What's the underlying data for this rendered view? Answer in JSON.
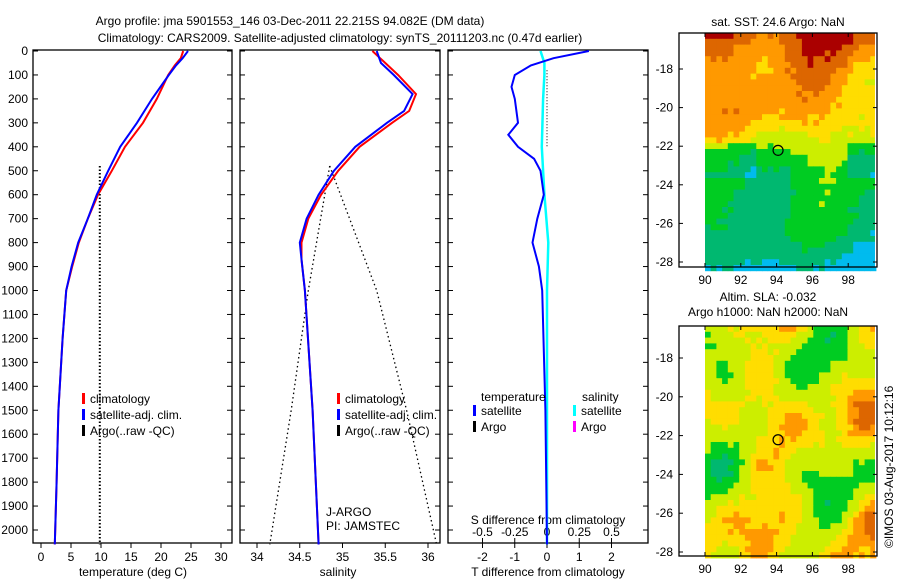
{
  "title": {
    "line1": "Argo profile: jma 5901553_146 03-Dec-2011 22.215S 94.082E (DM data)",
    "line2": "Climatology: CARS2009. Satellite-adjusted climatology: synTS_20111203.nc (0.47d earlier)"
  },
  "credit": "©IMOS 03-Aug-2017 10:12:16",
  "colors": {
    "climatology": "#ff0000",
    "satellite": "#0000ff",
    "argo": "#000000",
    "sal_satellite": "#00ffff",
    "sal_argo": "#ff00ff"
  },
  "chart_data": [
    {
      "type": "line",
      "id": "temperature",
      "xlabel": "temperature (deg C)",
      "xlim": [
        -2,
        31.5
      ],
      "ylim": [
        2060,
        0
      ],
      "xticks": [
        "0",
        "5",
        "10",
        "15",
        "20",
        "25",
        "30"
      ],
      "yticks": [
        "0",
        "100",
        "200",
        "300",
        "400",
        "500",
        "600",
        "700",
        "800",
        "900",
        "1000",
        "1100",
        "1200",
        "1300",
        "1400",
        "1500",
        "1600",
        "1700",
        "1800",
        "1900",
        "2000"
      ],
      "legend": [
        "climatology",
        "satellite-adj. clim.",
        "Argo(..raw -QC)"
      ],
      "series": [
        {
          "name": "climatology",
          "depth": [
            0,
            30,
            60,
            100,
            200,
            300,
            400,
            500,
            600,
            700,
            800,
            900,
            1000,
            1200,
            1500,
            1800,
            2060
          ],
          "values": [
            23.7,
            23.3,
            22.3,
            21.2,
            19.3,
            17,
            14,
            11.8,
            9.5,
            7.8,
            6.3,
            5.2,
            4.2,
            3.6,
            2.9,
            2.6,
            2.3
          ]
        },
        {
          "name": "satellite-adj. clim.",
          "depth": [
            0,
            30,
            60,
            100,
            200,
            300,
            400,
            500,
            600,
            700,
            800,
            900,
            1000,
            1200,
            1500,
            1800,
            2060
          ],
          "values": [
            24.5,
            23.6,
            22.5,
            21.3,
            18.5,
            16,
            13.2,
            11.2,
            9.3,
            7.8,
            6.2,
            5.1,
            4.2,
            3.6,
            2.9,
            2.6,
            2.3
          ]
        },
        {
          "name": "Argo(..raw -QC)",
          "depth": [
            480,
            2060
          ],
          "values": [
            9.8,
            9.8
          ]
        }
      ]
    },
    {
      "type": "line",
      "id": "salinity",
      "xlabel": "salinity",
      "xlim": [
        33.8,
        36.15
      ],
      "ylim": [
        2060,
        0
      ],
      "xticks": [
        "34",
        "34.5",
        "35",
        "35.5",
        "36"
      ],
      "legend": [
        "climatology",
        "satellite-adj. clim.",
        "Argo(..raw -QC)"
      ],
      "annotation": [
        "J-ARGO",
        "PI: JAMSTEC"
      ],
      "series": [
        {
          "name": "climatology",
          "depth": [
            0,
            50,
            100,
            180,
            250,
            300,
            400,
            500,
            600,
            700,
            800,
            870,
            1000,
            1500,
            2060
          ],
          "values": [
            35.35,
            35.5,
            35.65,
            35.86,
            35.78,
            35.58,
            35.2,
            34.95,
            34.75,
            34.6,
            34.52,
            34.52,
            34.56,
            34.65,
            34.72
          ]
        },
        {
          "name": "satellite-adj. clim.",
          "depth": [
            0,
            50,
            100,
            180,
            250,
            300,
            400,
            500,
            600,
            700,
            800,
            870,
            1000,
            1500,
            2060
          ],
          "values": [
            35.4,
            35.45,
            35.6,
            35.82,
            35.72,
            35.52,
            35.15,
            34.9,
            34.72,
            34.58,
            34.5,
            34.52,
            34.56,
            34.65,
            34.72
          ]
        },
        {
          "name": "envelope-left",
          "depth": [
            480,
            1000,
            1500,
            2060
          ],
          "values": [
            34.85,
            34.6,
            34.4,
            34.15
          ]
        },
        {
          "name": "envelope-right",
          "depth": [
            480,
            1000,
            1500,
            2060
          ],
          "values": [
            34.85,
            35.4,
            35.75,
            36.1
          ]
        }
      ]
    },
    {
      "type": "line",
      "id": "difference",
      "xlabel": "T difference from climatology",
      "xlabel_top": "S difference from climatology",
      "xlim": [
        -2.9,
        2.9
      ],
      "ylim": [
        2060,
        0
      ],
      "xticks": [
        "-2",
        "-1",
        "0",
        "1",
        "2"
      ],
      "xticks_top": [
        "-0.5",
        "-0.25",
        "0",
        "0.25",
        "0.5"
      ],
      "legend_temperature": {
        "title": "temperature",
        "items": [
          "satellite",
          "Argo"
        ]
      },
      "legend_salinity": {
        "title": "salinity",
        "items": [
          "satellite",
          "Argo"
        ]
      },
      "series": [
        {
          "name": "T satellite",
          "depth": [
            0,
            30,
            60,
            100,
            150,
            200,
            300,
            350,
            400,
            450,
            500,
            600,
            700,
            800,
            900,
            1000,
            1500,
            2060
          ],
          "values": [
            1.3,
            0.2,
            -0.5,
            -1.0,
            -1.1,
            -1.0,
            -0.9,
            -1.2,
            -0.9,
            -0.4,
            -0.2,
            -0.1,
            -0.3,
            -0.45,
            -0.25,
            -0.15,
            -0.05,
            0
          ]
        },
        {
          "name": "S satellite",
          "depth": [
            0,
            50,
            100,
            200,
            400,
            600,
            800,
            1000,
            1500,
            2060
          ],
          "values": [
            -0.05,
            -0.02,
            -0.02,
            -0.03,
            -0.04,
            -0.02,
            0.01,
            0.0,
            0.0,
            0.0
          ]
        },
        {
          "name": "zero",
          "depth": [
            80,
            400
          ],
          "values": [
            0,
            0
          ]
        }
      ]
    },
    {
      "type": "heatmap",
      "id": "sst-map",
      "title": "sat. SST: 24.6 Argo: NaN",
      "xticks": [
        "90",
        "92",
        "94",
        "96",
        "98"
      ],
      "yticks": [
        "-18",
        "-20",
        "-22",
        "-24",
        "-26",
        "-28"
      ],
      "marker": {
        "lon": 94.082,
        "lat": -22.215
      }
    },
    {
      "type": "heatmap",
      "id": "sla-map",
      "title_line1": "Altim. SLA: -0.032",
      "title_line2": "Argo h1000: NaN h2000: NaN",
      "xticks": [
        "90",
        "92",
        "94",
        "96",
        "98"
      ],
      "yticks": [
        "-18",
        "-20",
        "-22",
        "-24",
        "-26",
        "-28"
      ],
      "marker": {
        "lon": 94.082,
        "lat": -22.215
      }
    }
  ]
}
